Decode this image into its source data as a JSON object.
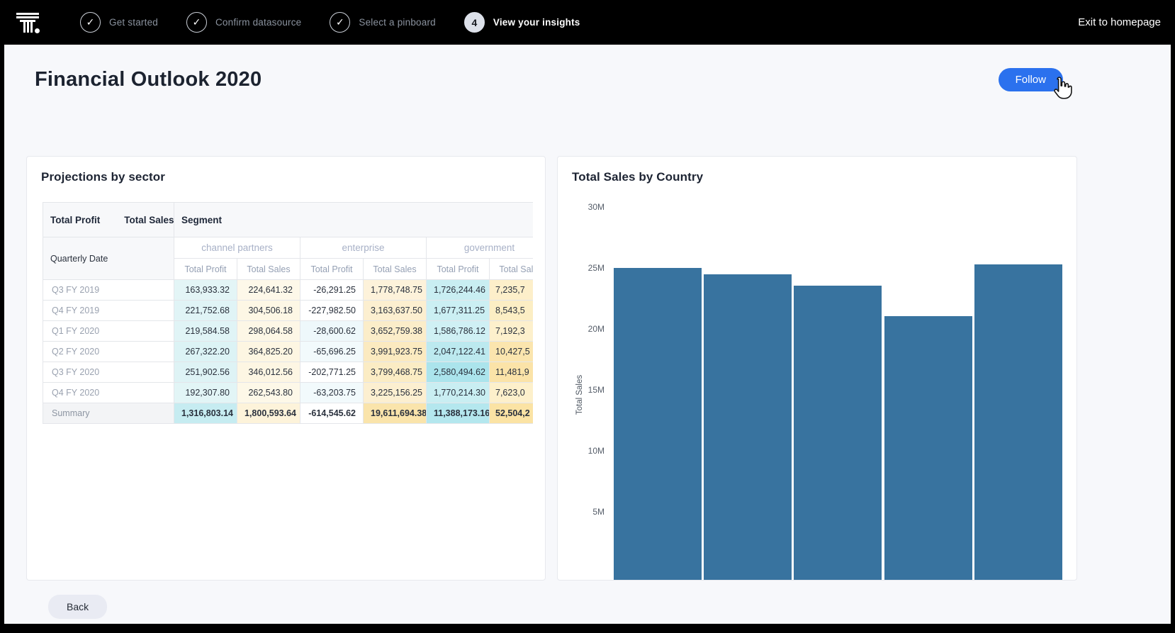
{
  "header": {
    "exit_label": "Exit to homepage",
    "steps": [
      {
        "label": "Get started",
        "state": "done"
      },
      {
        "label": "Confirm datasource",
        "state": "done"
      },
      {
        "label": "Select a pinboard",
        "state": "done"
      },
      {
        "label": "View your insights",
        "state": "active",
        "number": "4"
      }
    ]
  },
  "page": {
    "title": "Financial Outlook 2020",
    "follow_button": "Follow",
    "back_button": "Back"
  },
  "table_card": {
    "title": "Projections by sector",
    "measure_headers": [
      "Total Profit",
      "Total Sales"
    ],
    "segment_header": "Segment",
    "row_axis_header": "Quarterly Date",
    "groups": [
      "channel partners",
      "enterprise",
      "government"
    ],
    "sub_headers": [
      "Total Profit",
      "Total Sales",
      "Total Profit",
      "Total Sales",
      "Total Profit",
      "Total Sales"
    ],
    "rows": [
      {
        "label": "Q3 FY 2019",
        "cells": [
          {
            "v": "163,933.32",
            "bg": "#e3f5f6"
          },
          {
            "v": "224,641.32",
            "bg": "#fdf8e9"
          },
          {
            "v": "-26,291.25",
            "bg": "#ffffff"
          },
          {
            "v": "1,778,748.75",
            "bg": "#fdf2da"
          },
          {
            "v": "1,726,244.46",
            "bg": "#c9eef2"
          },
          {
            "v": "7,235,7",
            "bg": "#fdefca",
            "clipped": true
          }
        ]
      },
      {
        "label": "Q4 FY 2019",
        "cells": [
          {
            "v": "221,752.68",
            "bg": "#e0f4f6"
          },
          {
            "v": "304,506.18",
            "bg": "#fdf7e5"
          },
          {
            "v": "-227,982.50",
            "bg": "#ffffff"
          },
          {
            "v": "3,163,637.50",
            "bg": "#fcefd0"
          },
          {
            "v": "1,677,311.25",
            "bg": "#cbeff3"
          },
          {
            "v": "8,543,5",
            "bg": "#fceec4",
            "clipped": true
          }
        ]
      },
      {
        "label": "Q1 FY 2020",
        "cells": [
          {
            "v": "219,584.58",
            "bg": "#e0f4f6"
          },
          {
            "v": "298,064.58",
            "bg": "#fdf7e6"
          },
          {
            "v": "-28,600.62",
            "bg": "#eef8fb"
          },
          {
            "v": "3,652,759.38",
            "bg": "#fbedc9"
          },
          {
            "v": "1,586,786.12",
            "bg": "#cff0f4"
          },
          {
            "v": "7,192,3",
            "bg": "#fdf0cc",
            "clipped": true
          }
        ]
      },
      {
        "label": "Q2 FY 2020",
        "cells": [
          {
            "v": "267,322.20",
            "bg": "#dcf3f5"
          },
          {
            "v": "364,825.20",
            "bg": "#fdf6e2"
          },
          {
            "v": "-65,696.25",
            "bg": "#f2fafc"
          },
          {
            "v": "3,991,923.75",
            "bg": "#fbeac0"
          },
          {
            "v": "2,047,122.41",
            "bg": "#bce9ef"
          },
          {
            "v": "10,427,5",
            "bg": "#fbe5ae",
            "clipped": true
          }
        ]
      },
      {
        "label": "Q3 FY 2020",
        "cells": [
          {
            "v": "251,902.56",
            "bg": "#def3f5"
          },
          {
            "v": "346,012.56",
            "bg": "#fdf6e3"
          },
          {
            "v": "-202,771.25",
            "bg": "#ffffff"
          },
          {
            "v": "3,799,468.75",
            "bg": "#fbecc4"
          },
          {
            "v": "2,580,494.62",
            "bg": "#abe4ec"
          },
          {
            "v": "11,481,9",
            "bg": "#fbe3a8",
            "clipped": true
          }
        ]
      },
      {
        "label": "Q4 FY 2020",
        "cells": [
          {
            "v": "192,307.80",
            "bg": "#e2f5f6"
          },
          {
            "v": "262,543.80",
            "bg": "#fdf8e8"
          },
          {
            "v": "-63,203.75",
            "bg": "#f2fafc"
          },
          {
            "v": "3,225,156.25",
            "bg": "#fcefd0"
          },
          {
            "v": "1,770,214.30",
            "bg": "#c9eef2"
          },
          {
            "v": "7,623,0",
            "bg": "#fdf0cb",
            "clipped": true
          }
        ]
      }
    ],
    "summary_row": {
      "label": "Summary",
      "cells": [
        {
          "v": "1,316,803.14",
          "bg": "#c6ecf1"
        },
        {
          "v": "1,800,593.64",
          "bg": "#fdf3da"
        },
        {
          "v": "-614,545.62",
          "bg": "#ffffff"
        },
        {
          "v": "19,611,694.38",
          "bg": "#fae4ab"
        },
        {
          "v": "11,388,173.16",
          "bg": "#b4e7ee"
        },
        {
          "v": "52,504,2",
          "bg": "#fbe3a4",
          "clipped": true
        }
      ]
    }
  },
  "chart_card": {
    "title": "Total Sales by Country"
  },
  "chart_data": {
    "type": "bar",
    "title": "Total Sales by Country",
    "ylabel": "Total Sales",
    "xlabel": "",
    "y_ticks": [
      "30M",
      "25M",
      "20M",
      "15M",
      "10M",
      "5M"
    ],
    "y_tick_values_M": [
      30,
      25,
      20,
      15,
      10,
      5
    ],
    "values_M": [
      25.0,
      24.45,
      23.55,
      21.05,
      25.3
    ],
    "bar_count": 5,
    "bar_color": "#38739f",
    "grid": false,
    "legend": "none",
    "note": "x-axis category labels clipped below card edge; bars clipped at bottom"
  },
  "colors": {
    "accent_blue": "#2b71ee",
    "bar_blue": "#38739f",
    "topbar_bg": "#000000",
    "page_bg": "#f7f8fb"
  }
}
